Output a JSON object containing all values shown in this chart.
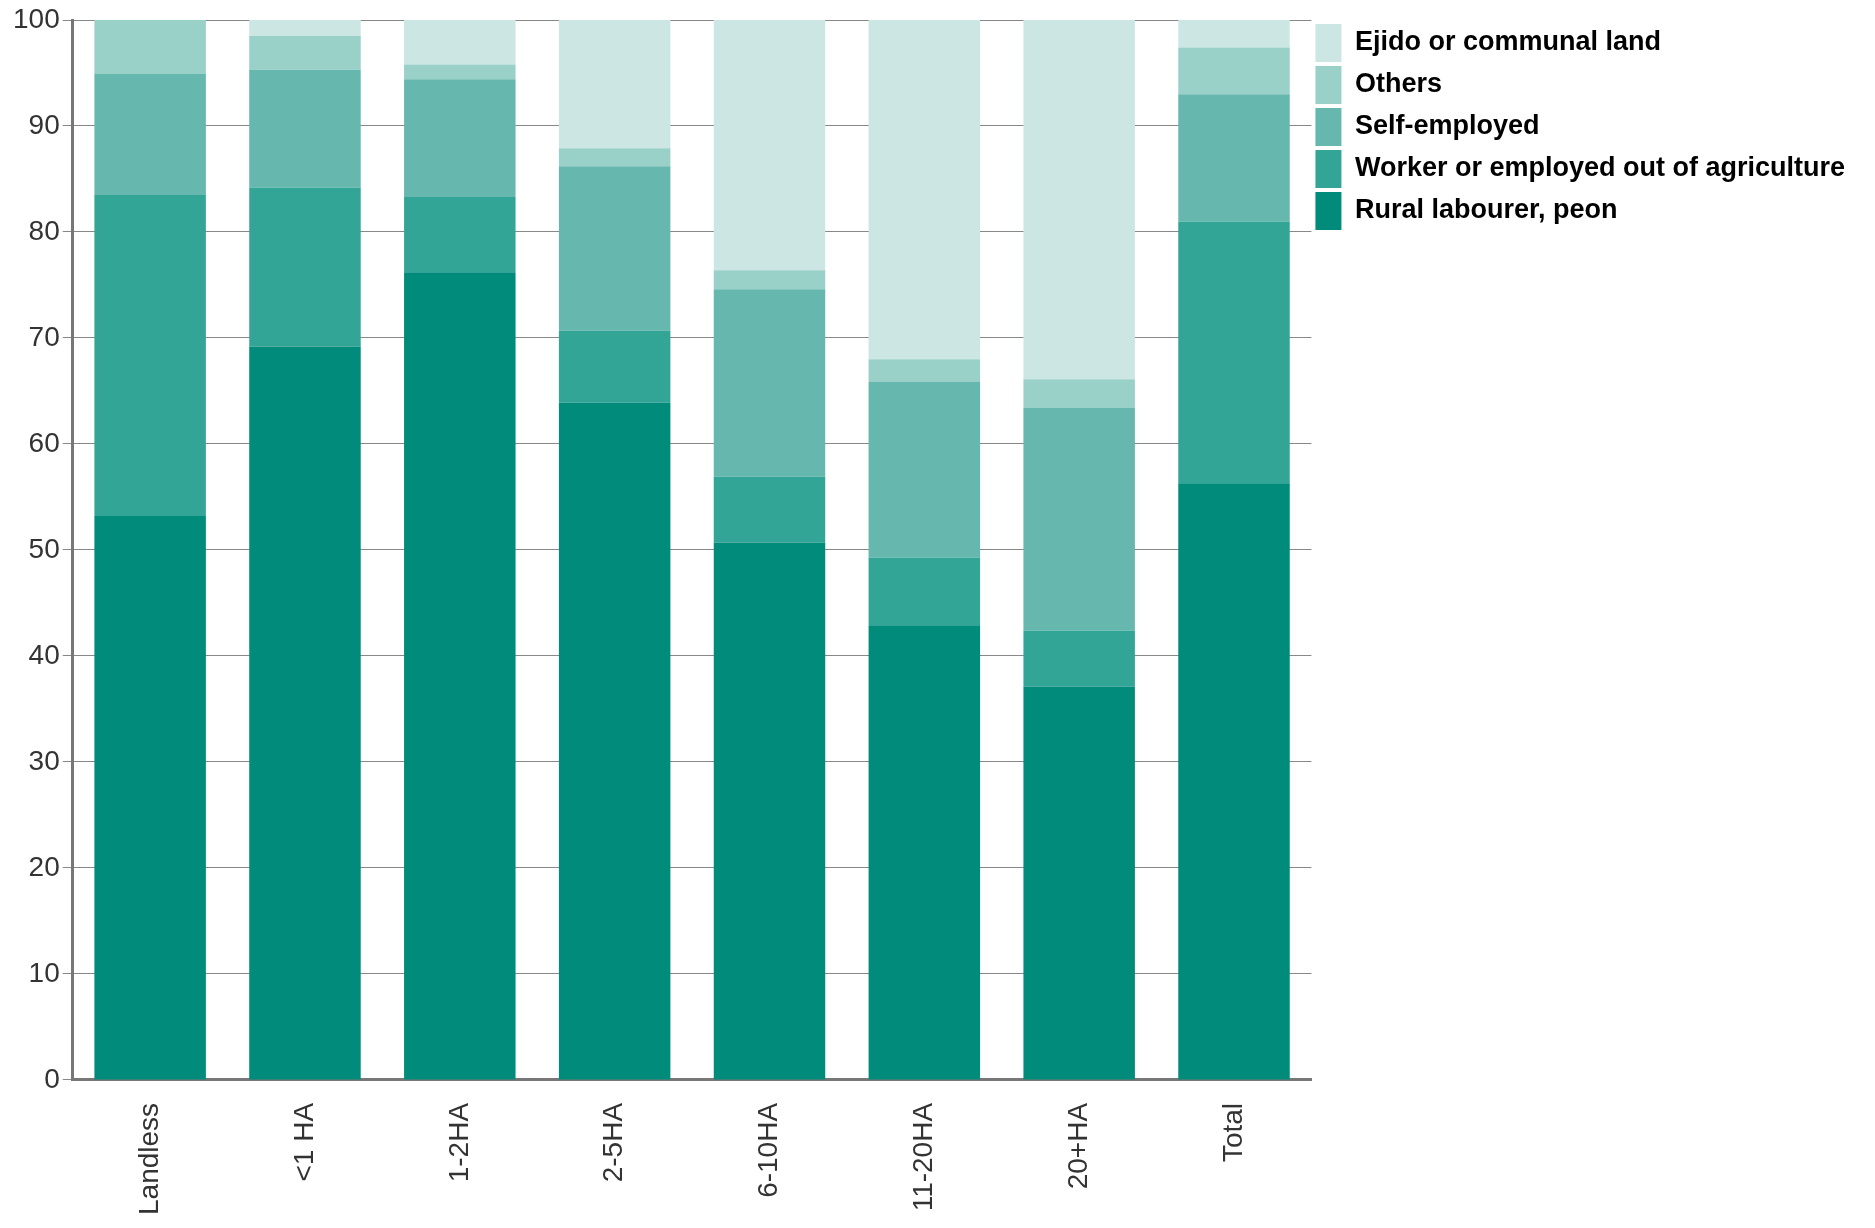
{
  "chart_data": {
    "type": "bar",
    "stacked": true,
    "categories": [
      "Landless",
      "<1 HA",
      "1-2HA",
      "2-5HA",
      "6-10HA",
      "11-20HA",
      "20+HA",
      "Total"
    ],
    "series": [
      {
        "name": "Rural labourer, peon",
        "color": "#008b7b",
        "values": [
          53.2,
          69.2,
          76.2,
          63.9,
          50.7,
          42.9,
          37.1,
          56.3
        ]
      },
      {
        "name": "Worker or employed out of agriculture",
        "color": "#33a596",
        "values": [
          30.3,
          15.0,
          7.1,
          6.8,
          6.2,
          6.4,
          5.3,
          24.7
        ]
      },
      {
        "name": "Self-employed",
        "color": "#66b8ae",
        "values": [
          11.4,
          11.1,
          11.1,
          15.5,
          17.7,
          16.6,
          21.0,
          12.0
        ]
      },
      {
        "name": "Others",
        "color": "#99d0c8",
        "values": [
          5.1,
          3.2,
          1.4,
          1.7,
          1.8,
          2.1,
          2.7,
          4.4
        ]
      },
      {
        "name": "Ejido or communal land",
        "color": "#cce7e3",
        "values": [
          0,
          1.5,
          4.2,
          12.1,
          23.6,
          32.0,
          33.9,
          2.6
        ]
      }
    ],
    "ylim": [
      0,
      100
    ],
    "yticks": [
      0,
      10,
      20,
      30,
      40,
      50,
      60,
      70,
      80,
      90,
      100
    ],
    "grid": "y",
    "legend": "right"
  }
}
